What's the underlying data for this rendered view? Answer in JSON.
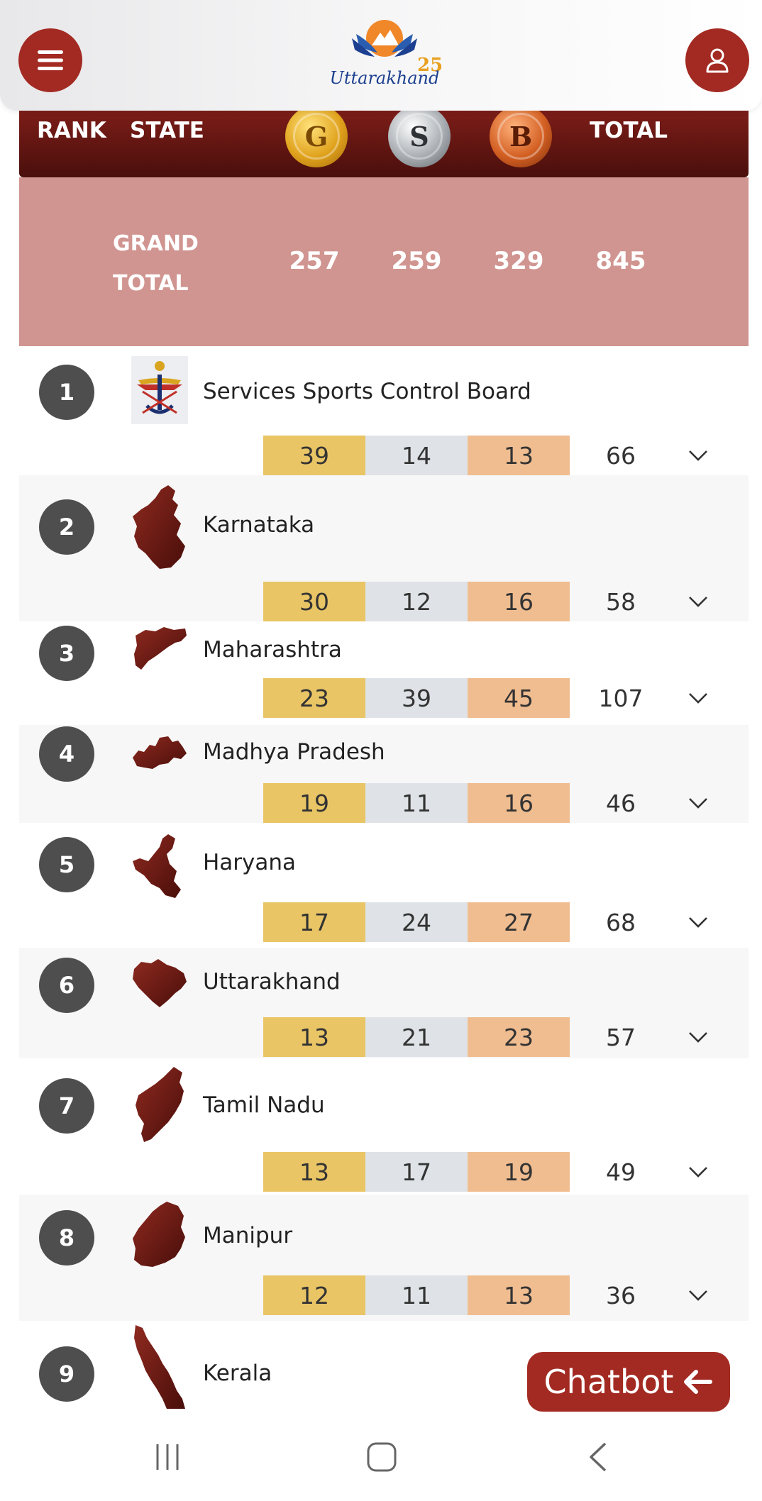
{
  "header": {
    "logo_text": "Uttarakhand",
    "colors": {
      "accent": "#a32a22"
    }
  },
  "table_header": {
    "rank": "RANK",
    "state": "STATE",
    "gold": "G",
    "silver": "S",
    "bronze": "B",
    "total": "TOTAL"
  },
  "grand_total": {
    "label_line1": "GRAND",
    "label_line2": "TOTAL",
    "gold": "257",
    "silver": "259",
    "bronze": "329",
    "total": "845"
  },
  "rows": [
    {
      "rank": "1",
      "state": "Services Sports Control Board",
      "gold": "39",
      "silver": "14",
      "bronze": "13",
      "total": "66"
    },
    {
      "rank": "2",
      "state": "Karnataka",
      "gold": "30",
      "silver": "12",
      "bronze": "16",
      "total": "58"
    },
    {
      "rank": "3",
      "state": "Maharashtra",
      "gold": "23",
      "silver": "39",
      "bronze": "45",
      "total": "107"
    },
    {
      "rank": "4",
      "state": "Madhya Pradesh",
      "gold": "19",
      "silver": "11",
      "bronze": "16",
      "total": "46"
    },
    {
      "rank": "5",
      "state": "Haryana",
      "gold": "17",
      "silver": "24",
      "bronze": "27",
      "total": "68"
    },
    {
      "rank": "6",
      "state": "Uttarakhand",
      "gold": "13",
      "silver": "21",
      "bronze": "23",
      "total": "57"
    },
    {
      "rank": "7",
      "state": "Tamil Nadu",
      "gold": "13",
      "silver": "17",
      "bronze": "19",
      "total": "49"
    },
    {
      "rank": "8",
      "state": "Manipur",
      "gold": "12",
      "silver": "11",
      "bronze": "13",
      "total": "36"
    },
    {
      "rank": "9",
      "state": "Kerala"
    }
  ],
  "chatbot": {
    "label": "Chatbot"
  },
  "navbar": {
    "items": [
      "recent-apps",
      "home",
      "back"
    ]
  }
}
